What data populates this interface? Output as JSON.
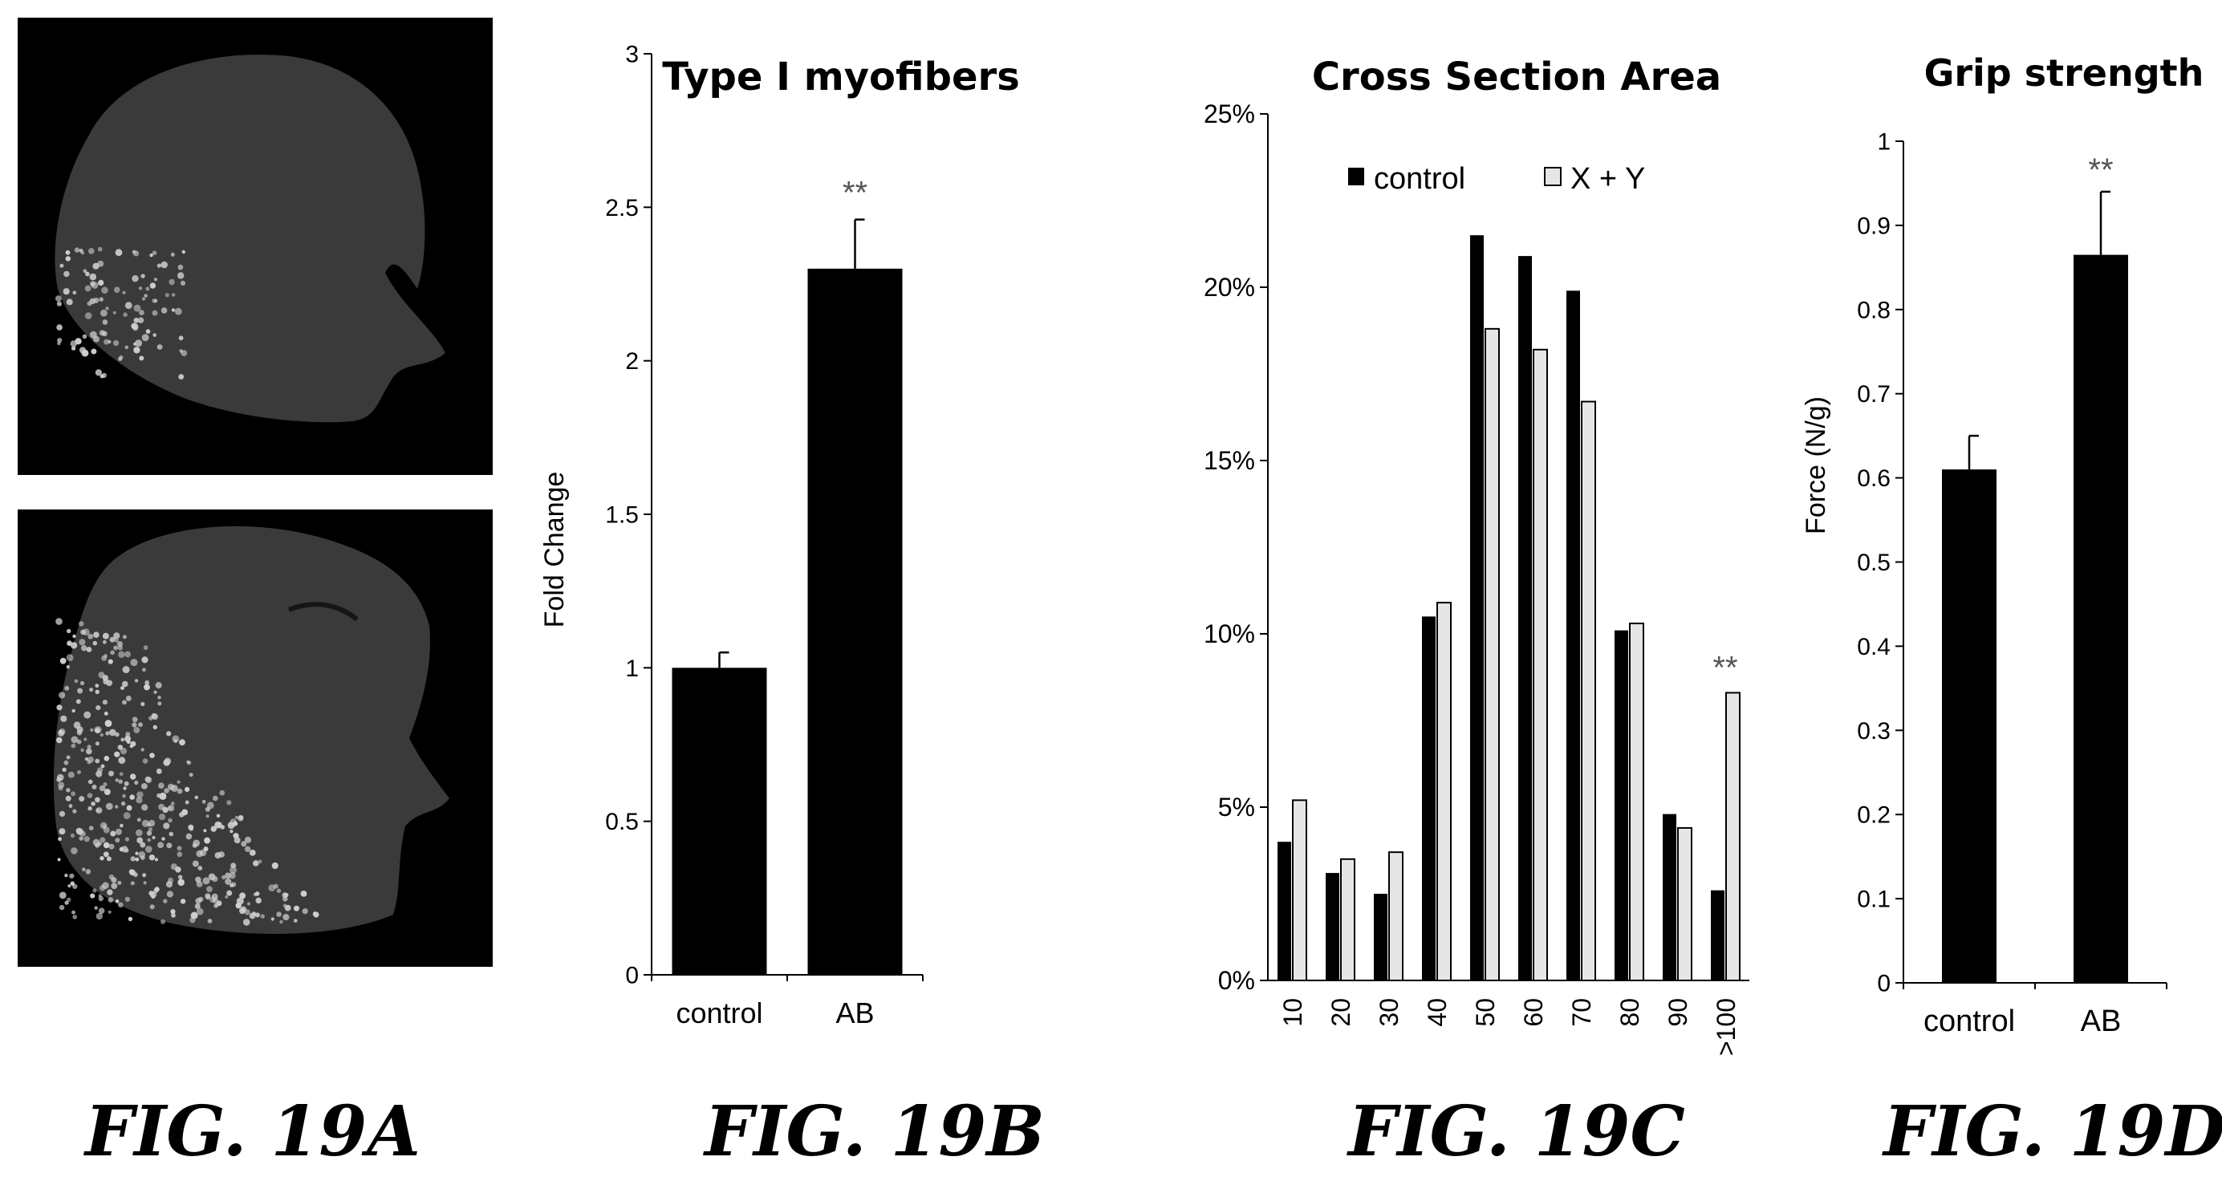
{
  "figures": {
    "a": {
      "label": "FIG. 19A"
    },
    "b": {
      "label": "FIG. 19B"
    },
    "c": {
      "label": "FIG. 19C"
    },
    "d": {
      "label": "FIG. 19D"
    }
  },
  "colors": {
    "bar_dark": "#000000",
    "bar_light": "#e6e6e6",
    "axis": "#000000",
    "image_bg": "#000000",
    "tissue": "#3a3a3a",
    "fiber_dot": "#cfcfcf"
  },
  "images": [
    {
      "name": "muscle-section-top",
      "description_icon": "micrograph"
    },
    {
      "name": "muscle-section-bottom",
      "description_icon": "micrograph"
    }
  ],
  "chart_data": [
    {
      "type": "bar",
      "title": "Type I myofibers",
      "xlabel": "",
      "ylabel": "Fold Change",
      "categories": [
        "control",
        "AB"
      ],
      "values": [
        1.0,
        2.3
      ],
      "errors": [
        0.05,
        0.16
      ],
      "significance": [
        "",
        "**"
      ],
      "ylim": [
        0,
        3
      ],
      "yticks": [
        0,
        0.5,
        1,
        1.5,
        2,
        2.5,
        3
      ],
      "ytick_labels": [
        "0",
        "0.5",
        "1",
        "1.5",
        "2",
        "2.5",
        "3"
      ],
      "grid": false
    },
    {
      "type": "bar",
      "title": "Cross Section Area",
      "xlabel": "",
      "ylabel": "",
      "categories": [
        "10",
        "20",
        "30",
        "40",
        "50",
        "60",
        "70",
        "80",
        "90",
        ">100"
      ],
      "series": [
        {
          "name": "control",
          "values": [
            4.0,
            3.1,
            2.5,
            10.5,
            21.5,
            20.9,
            19.9,
            10.1,
            4.8,
            2.6
          ]
        },
        {
          "name": "X + Y",
          "values": [
            5.2,
            3.5,
            3.7,
            10.9,
            18.8,
            18.2,
            16.7,
            10.3,
            4.4,
            8.3
          ]
        }
      ],
      "significance": [
        "",
        "",
        "",
        "",
        "",
        "",
        "",
        "",
        "",
        "**"
      ],
      "ylim": [
        0,
        25
      ],
      "yticks": [
        0,
        5,
        10,
        15,
        20,
        25
      ],
      "ytick_labels": [
        "0%",
        "5%",
        "10%",
        "15%",
        "20%",
        "25%"
      ],
      "legend": "top",
      "grid": false
    },
    {
      "type": "bar",
      "title": "Grip strength",
      "xlabel": "",
      "ylabel": "Force (N/g)",
      "categories": [
        "control",
        "AB"
      ],
      "values": [
        0.61,
        0.865
      ],
      "errors": [
        0.04,
        0.075
      ],
      "significance": [
        "",
        "**"
      ],
      "ylim": [
        0,
        1
      ],
      "yticks": [
        0,
        0.1,
        0.2,
        0.3,
        0.4,
        0.5,
        0.6,
        0.7,
        0.8,
        0.9,
        1
      ],
      "ytick_labels": [
        "0",
        "0.1",
        "0.2",
        "0.3",
        "0.4",
        "0.5",
        "0.6",
        "0.7",
        "0.8",
        "0.9",
        "1"
      ],
      "grid": false
    }
  ]
}
